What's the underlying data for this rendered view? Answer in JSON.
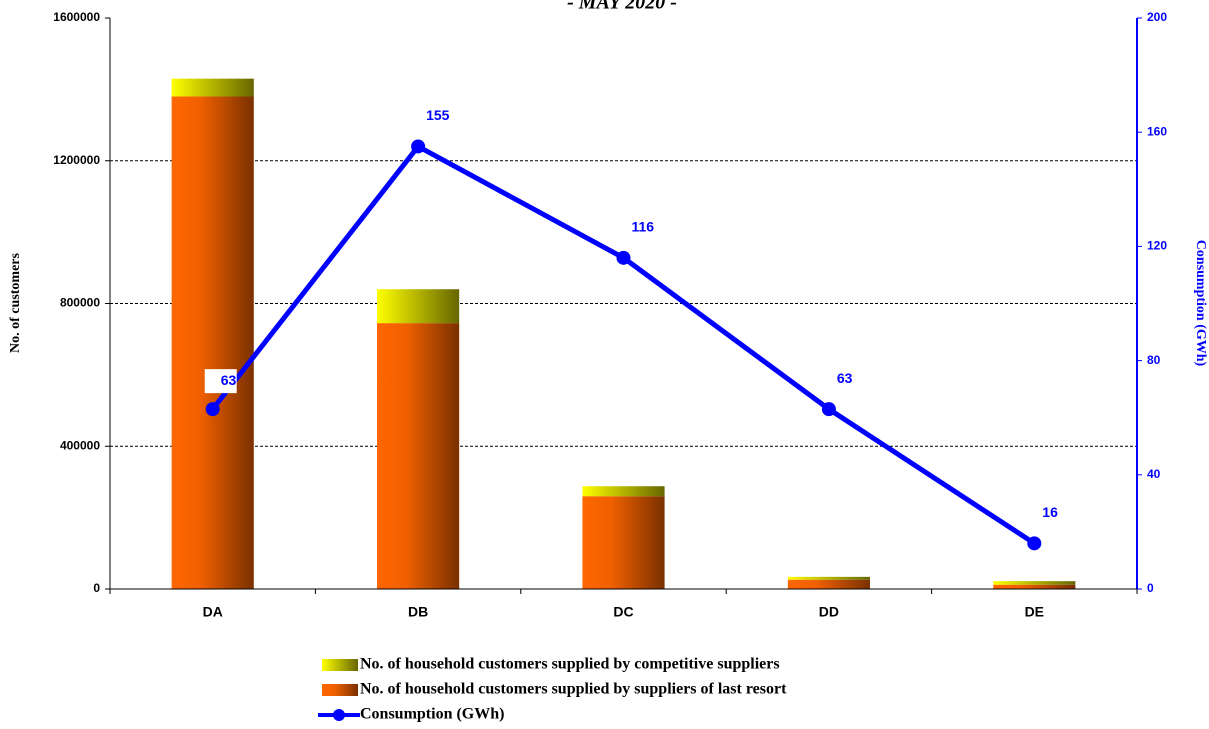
{
  "chart_data": {
    "type": "bar",
    "title": "- MAY 2020 -",
    "y_label": "No. of customers",
    "y2_label": "Consumption  (GWh)",
    "categories": [
      "DA",
      "DB",
      "DC",
      "DD",
      "DE"
    ],
    "series": [
      {
        "name": "No. of household customers supplied by competitive suppliers",
        "color": "#ffff00",
        "values": [
          50000,
          95000,
          28000,
          8000,
          10000
        ]
      },
      {
        "name": "No. of household customers supplied by suppliers of last resort",
        "color": "#ff6600",
        "values": [
          1380000,
          745000,
          260000,
          26000,
          12000
        ]
      },
      {
        "name": "Consumption (GWh)",
        "color": "#0000ff",
        "axis": "y2",
        "type": "line",
        "values": [
          63,
          155,
          116,
          63,
          16
        ]
      }
    ],
    "ylim": [
      0,
      1600000
    ],
    "yticks": [
      0,
      400000,
      800000,
      1200000,
      1600000
    ],
    "y2lim": [
      0,
      200
    ],
    "y2ticks": [
      0,
      40,
      80,
      120,
      160,
      200
    ],
    "grid": true
  }
}
